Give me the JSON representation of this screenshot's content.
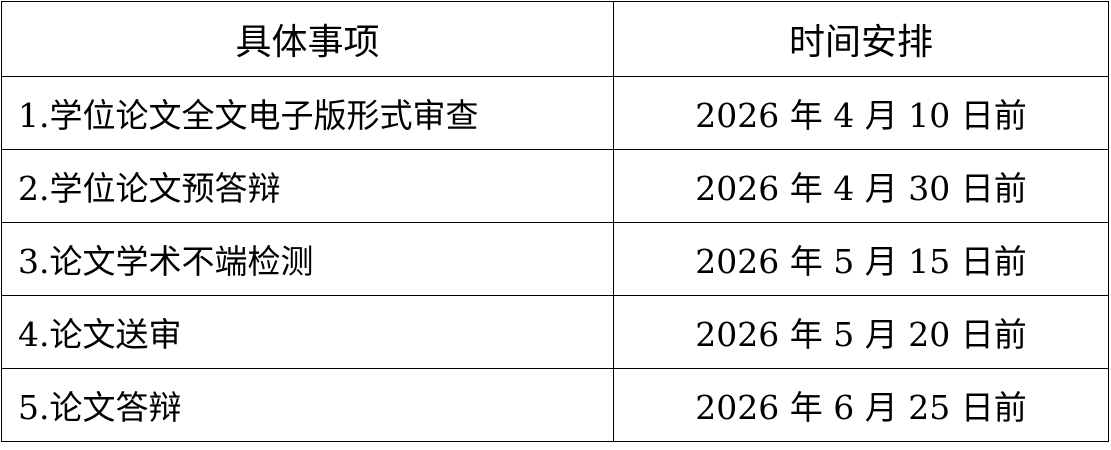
{
  "headers": [
    "具体事项",
    "时间安排"
  ],
  "rows": [
    [
      "1.学位论文全文电子版形式审查",
      "2026 年 4 月 10 日前"
    ],
    [
      "2.学位论文预答辩",
      "2026 年 4 月 30 日前"
    ],
    [
      "3.论文学术不端检测",
      "2026 年 5 月 15 日前"
    ],
    [
      "4.论文送审",
      "2026 年 5 月 20 日前"
    ],
    [
      "5.论文答辩",
      "2026 年 6 月 25 日前"
    ]
  ]
}
